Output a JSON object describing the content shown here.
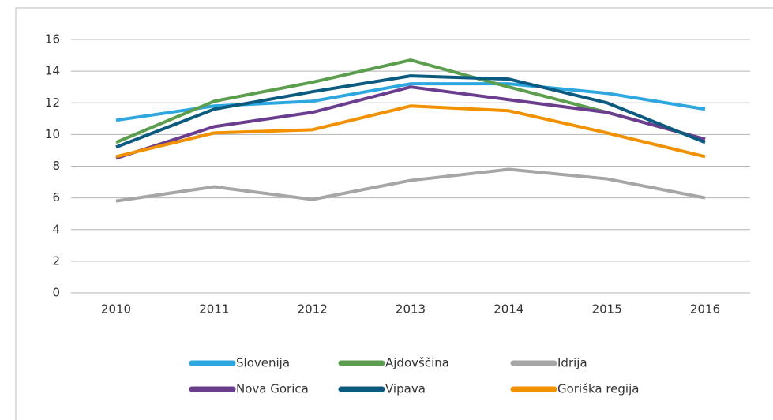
{
  "chart_data": {
    "type": "line",
    "categories": [
      "2010",
      "2011",
      "2012",
      "2013",
      "2014",
      "2015",
      "2016"
    ],
    "series": [
      {
        "name": "Slovenija",
        "color": "#2ea7e0",
        "values": [
          10.9,
          11.8,
          12.1,
          13.2,
          13.2,
          12.6,
          11.6
        ]
      },
      {
        "name": "Ajdovščina",
        "color": "#5b9e4d",
        "values": [
          9.5,
          12.1,
          13.3,
          14.7,
          13.0,
          11.4,
          9.7
        ]
      },
      {
        "name": "Idrija",
        "color": "#a6a6a6",
        "values": [
          5.8,
          6.7,
          5.9,
          7.1,
          7.8,
          7.2,
          6.0
        ]
      },
      {
        "name": "Nova Gorica",
        "color": "#6a3d8f",
        "values": [
          8.5,
          10.5,
          11.4,
          13.0,
          12.2,
          11.4,
          9.7
        ]
      },
      {
        "name": "Vipava",
        "color": "#0b5a80",
        "values": [
          9.2,
          11.6,
          12.7,
          13.7,
          13.5,
          12.0,
          9.5
        ]
      },
      {
        "name": "Goriška regija",
        "color": "#f29100",
        "values": [
          8.6,
          10.1,
          10.3,
          11.8,
          11.5,
          10.1,
          8.6
        ]
      }
    ],
    "ylim": [
      0,
      16
    ],
    "yticks": [
      0,
      2,
      4,
      6,
      8,
      10,
      12,
      14,
      16
    ],
    "grid": true
  }
}
